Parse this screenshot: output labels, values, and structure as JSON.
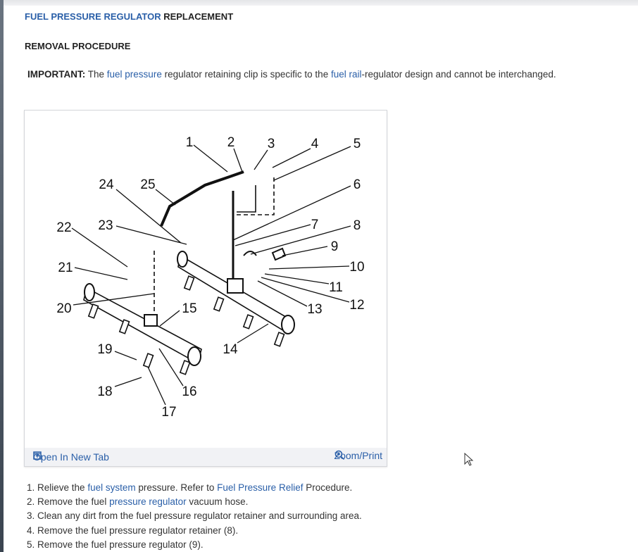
{
  "header": {
    "title_link": "FUEL PRESSURE REGULATOR",
    "title_rest": " REPLACEMENT",
    "section": "REMOVAL PROCEDURE"
  },
  "important": {
    "label": "IMPORTANT:",
    "t1": " The ",
    "link1": "fuel pressure",
    "t2": " regulator retaining clip is specific to the ",
    "link2": "fuel rail",
    "t3": "-regulator design and cannot be interchanged."
  },
  "figure": {
    "callouts": [
      "1",
      "2",
      "3",
      "4",
      "5",
      "6",
      "7",
      "8",
      "9",
      "10",
      "11",
      "12",
      "13",
      "14",
      "15",
      "16",
      "17",
      "18",
      "19",
      "20",
      "21",
      "22",
      "23",
      "24",
      "25"
    ],
    "open_tab": "Open In New Tab",
    "zoom_print": "Zoom/Print",
    "open_icon": "open-new-tab-icon",
    "zoom_icon": "magnifier-plus-icon"
  },
  "steps": [
    {
      "n": "1. ",
      "a": "Relieve the ",
      "l1": "fuel system",
      "b": " pressure. Refer to ",
      "l2": "Fuel Pressure Relief",
      "c": " Procedure."
    },
    {
      "n": "2. ",
      "a": "Remove the fuel ",
      "l1": "pressure regulator",
      "b": " vacuum hose."
    },
    {
      "n": "3. ",
      "a": "Clean any dirt from the fuel pressure regulator retainer and surrounding area."
    },
    {
      "n": "4. ",
      "a": "Remove the fuel pressure regulator retainer (8)."
    },
    {
      "n": "5. ",
      "a": "Remove the fuel pressure regulator (9)."
    }
  ],
  "colors": {
    "link": "#2a5fa8",
    "footer_bg": "#f1f2f5"
  }
}
